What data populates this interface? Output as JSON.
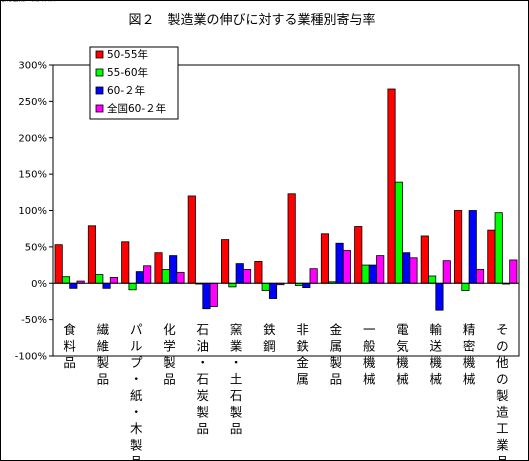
{
  "chart_data": {
    "type": "bar",
    "title": "図２　製造業の伸びに対する業種別寄与率",
    "xlabel": "",
    "ylabel": "",
    "ylim": [
      -100,
      300
    ],
    "y_ticks": [
      "300%",
      "250%",
      "200%",
      "150%",
      "100%",
      "50%",
      "0%",
      "-50%",
      "-100%"
    ],
    "y_tick_values": [
      300,
      250,
      200,
      150,
      100,
      50,
      0,
      -50,
      -100
    ],
    "grid": false,
    "legend_position": "top-left",
    "categories": [
      "食料品",
      "繊維製品",
      "パルプ・紙・木製品",
      "化学製品",
      "石油・石炭製品",
      "窯業・土石製品",
      "鉄鋼",
      "非鉄金属",
      "金属製品",
      "一般機械",
      "電気機械",
      "輸送機械",
      "精密機械",
      "その他の製造工業品"
    ],
    "series": [
      {
        "name": "50-55年",
        "color": "#ff0000",
        "values": [
          53,
          79,
          57,
          42,
          120,
          60,
          30,
          123,
          68,
          78,
          267,
          65,
          100,
          73
        ]
      },
      {
        "name": "55-60年",
        "color": "#00ff00",
        "values": [
          9,
          12,
          -9,
          19,
          0,
          -5,
          -10,
          -3,
          2,
          25,
          139,
          10,
          -10,
          97
        ]
      },
      {
        "name": "60-２年",
        "color": "#0000ff",
        "values": [
          -7,
          -7,
          16,
          38,
          -35,
          27,
          -21,
          -6,
          55,
          25,
          42,
          -37,
          100,
          0
        ]
      },
      {
        "name": "全国60-２年",
        "color": "#ff00ff",
        "values": [
          3,
          8,
          24,
          15,
          -32,
          19,
          -2,
          20,
          45,
          38,
          35,
          31,
          19,
          32
        ]
      }
    ]
  }
}
